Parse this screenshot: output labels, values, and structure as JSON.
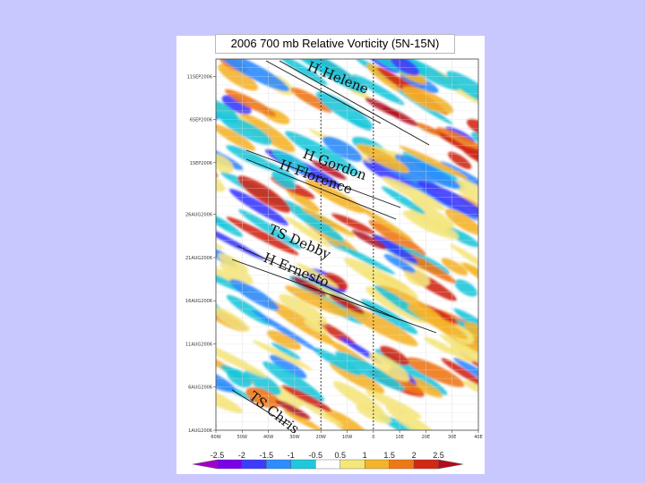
{
  "chart_data": {
    "type": "heatmap",
    "title": "2006 700 mb Relative Vorticity (5N-15N)",
    "x_ticks": [
      "60W",
      "50W",
      "40W",
      "30W",
      "20W",
      "10W",
      "0",
      "10E",
      "20E",
      "30E",
      "40E"
    ],
    "y_ticks": [
      "11SEP2006",
      "6SEP2006",
      "1SEP2006",
      "26AUG2006",
      "21AUG2006",
      "16AUG2006",
      "11AUG2006",
      "6AUG2006",
      "1AUG2006"
    ],
    "xlim": [
      -60,
      40
    ],
    "ylim": [
      "1AUG2006",
      "13SEP2006"
    ],
    "dashed_reference_lines": [
      -20,
      0
    ],
    "colorbar": {
      "labels": [
        "-2.5",
        "-2",
        "-1.5",
        "-1",
        "-0.5",
        "0.5",
        "1",
        "1.5",
        "2",
        "2.5"
      ],
      "colors": [
        "#a000c8",
        "#7a00e6",
        "#3c3cff",
        "#2d8cff",
        "#1ec8dc",
        "#ffffff",
        "#f5e67a",
        "#f5b428",
        "#f07814",
        "#d22814",
        "#b40a1e"
      ]
    },
    "storms": [
      {
        "label": "H Helene"
      },
      {
        "label": "H Gordon"
      },
      {
        "label": "H Florence"
      },
      {
        "label": "TS Debby"
      },
      {
        "label": "H Ernesto"
      },
      {
        "label": "TS Chris"
      }
    ]
  }
}
